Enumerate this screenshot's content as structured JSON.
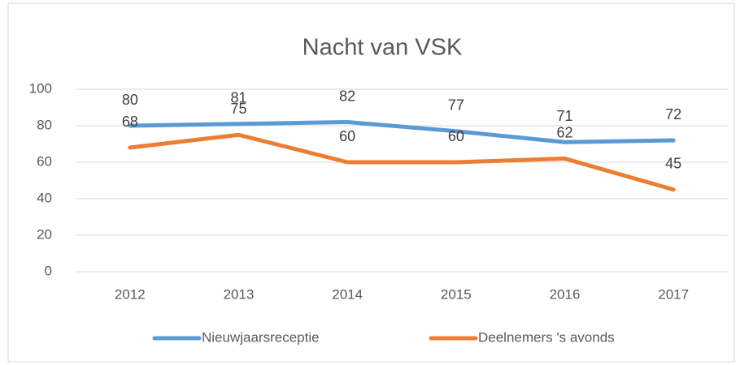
{
  "chart_data": {
    "type": "line",
    "title": "Nacht van VSK",
    "categories": [
      "2012",
      "2013",
      "2014",
      "2015",
      "2016",
      "2017"
    ],
    "series": [
      {
        "name": "Nieuwjaarsreceptie",
        "color": "#5b9bd5",
        "values": [
          80,
          81,
          82,
          77,
          71,
          72
        ]
      },
      {
        "name": "Deelnemers 's avonds",
        "color": "#ed7d31",
        "values": [
          68,
          75,
          60,
          60,
          62,
          45
        ]
      }
    ],
    "ylim": [
      0,
      100
    ],
    "yticks": [
      0,
      20,
      40,
      60,
      80,
      100
    ],
    "grid": true,
    "legend": "bottom"
  }
}
